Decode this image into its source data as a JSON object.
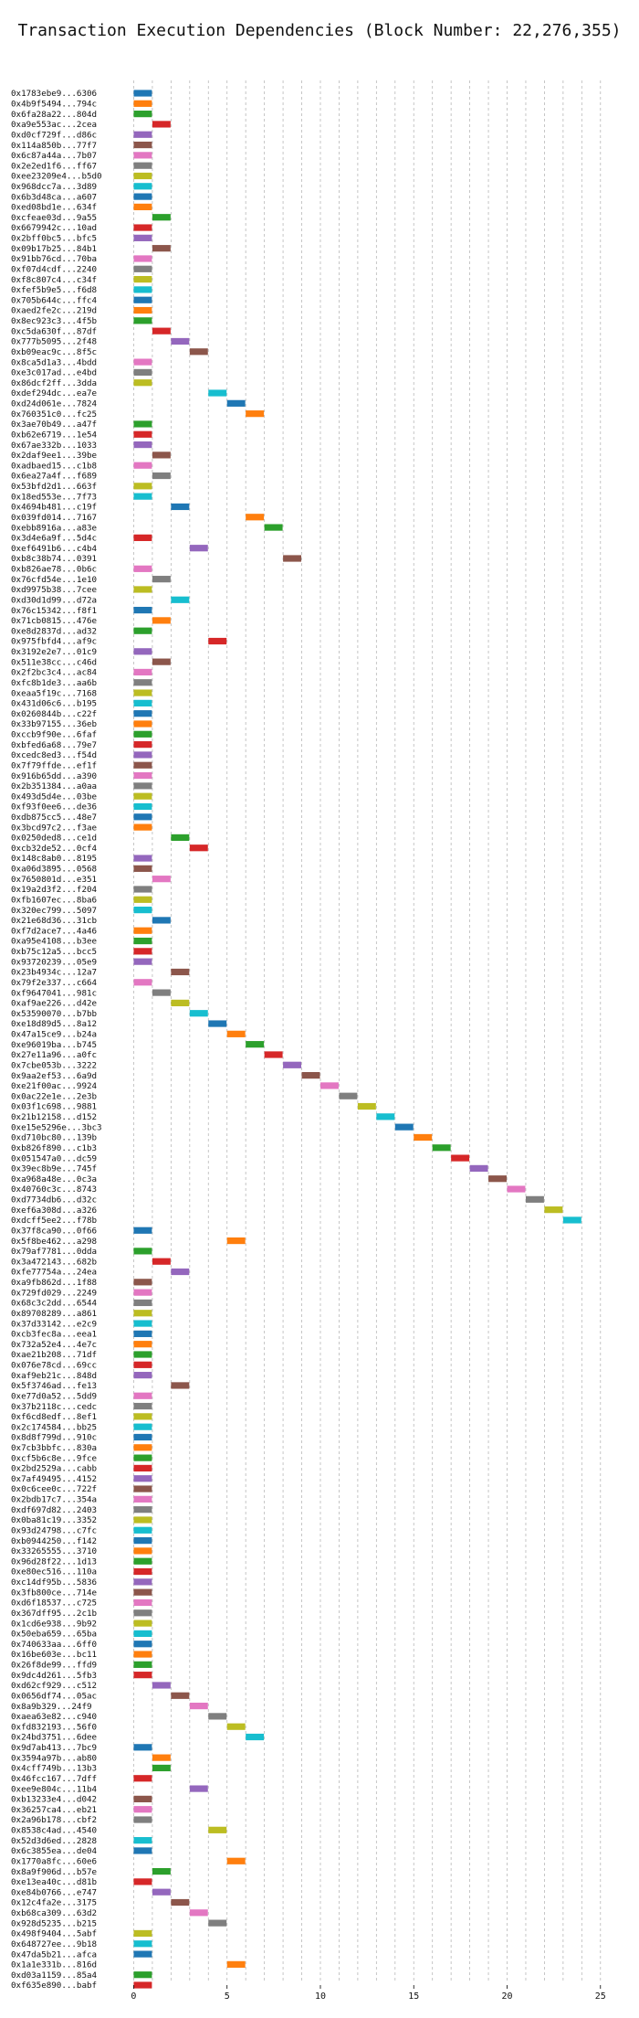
{
  "chart_data": {
    "type": "bar",
    "title": "Transaction Execution Dependencies (Block Number: 22,276,355)",
    "xlabel": "",
    "ylabel": "",
    "xlim": [
      -1,
      25.5
    ],
    "xticks": [
      0,
      5,
      10,
      15,
      20,
      25
    ],
    "grid": true,
    "palette": [
      "#1f77b4",
      "#ff7f0e",
      "#2ca02c",
      "#d62728",
      "#9467bd",
      "#8c564b",
      "#e377c2",
      "#7f7f7f",
      "#bcbd22",
      "#17becf"
    ],
    "transactions": [
      {
        "label": "0x1783ebe9...6306",
        "start": 0
      },
      {
        "label": "0x4b9f5494...794c",
        "start": 0
      },
      {
        "label": "0x6fa28a22...804d",
        "start": 0
      },
      {
        "label": "0xa9e553ac...2cea",
        "start": 1
      },
      {
        "label": "0xd0cf729f...d86c",
        "start": 0
      },
      {
        "label": "0x114a850b...77f7",
        "start": 0
      },
      {
        "label": "0x6c87a44a...7b07",
        "start": 0
      },
      {
        "label": "0x2e2ed1f6...ff67",
        "start": 0
      },
      {
        "label": "0xee23209e4...b5d0",
        "start": 0
      },
      {
        "label": "0x968dcc7a...3d89",
        "start": 0
      },
      {
        "label": "0x6b3d48ca...a607",
        "start": 0
      },
      {
        "label": "0xed08bd1e...634f",
        "start": 0
      },
      {
        "label": "0xcfeae03d...9a55",
        "start": 1
      },
      {
        "label": "0x6679942c...10ad",
        "start": 0
      },
      {
        "label": "0x2bff0bc5...bfc5",
        "start": 0
      },
      {
        "label": "0x09b17b25...84b1",
        "start": 1
      },
      {
        "label": "0x91bb76cd...70ba",
        "start": 0
      },
      {
        "label": "0xf07d4cdf...2240",
        "start": 0
      },
      {
        "label": "0xf8c807c4...c34f",
        "start": 0
      },
      {
        "label": "0xfef5b9e5...f6d8",
        "start": 0
      },
      {
        "label": "0x705b644c...ffc4",
        "start": 0
      },
      {
        "label": "0xaed2fe2c...219d",
        "start": 0
      },
      {
        "label": "0x8ec923c3...4f5b",
        "start": 0
      },
      {
        "label": "0xc5da630f...87df",
        "start": 1
      },
      {
        "label": "0x777b5095...2f48",
        "start": 2
      },
      {
        "label": "0xb09eac9c...8f5c",
        "start": 3
      },
      {
        "label": "0x8ca5d1a3...4bdd",
        "start": 0
      },
      {
        "label": "0xe3c017ad...e4bd",
        "start": 0
      },
      {
        "label": "0x86dcf2ff...3dda",
        "start": 0
      },
      {
        "label": "0xdef294dc...ea7e",
        "start": 4
      },
      {
        "label": "0xd24d061e...7824",
        "start": 5
      },
      {
        "label": "0x760351c0...fc25",
        "start": 6
      },
      {
        "label": "0x3ae70b49...a47f",
        "start": 0
      },
      {
        "label": "0xb62e6719...1e54",
        "start": 0
      },
      {
        "label": "0x67ae332b...1033",
        "start": 0
      },
      {
        "label": "0x2daf9ee1...39be",
        "start": 1
      },
      {
        "label": "0xadbaed15...c1b8",
        "start": 0
      },
      {
        "label": "0x6ea27a4f...f689",
        "start": 1
      },
      {
        "label": "0x53bfd2d1...663f",
        "start": 0
      },
      {
        "label": "0x18ed553e...7f73",
        "start": 0
      },
      {
        "label": "0x4694b481...c19f",
        "start": 2
      },
      {
        "label": "0x039fd014...7167",
        "start": 6
      },
      {
        "label": "0xebb8916a...a83e",
        "start": 7
      },
      {
        "label": "0x3d4e6a9f...5d4c",
        "start": 0
      },
      {
        "label": "0xef6491b6...c4b4",
        "start": 3
      },
      {
        "label": "0xb8c38b74...0391",
        "start": 8
      },
      {
        "label": "0xb826ae78...0b6c",
        "start": 0
      },
      {
        "label": "0x76cfd54e...1e10",
        "start": 1
      },
      {
        "label": "0xd9975b38...7cee",
        "start": 0
      },
      {
        "label": "0xd30d1d99...d72a",
        "start": 2
      },
      {
        "label": "0x76c15342...f8f1",
        "start": 0
      },
      {
        "label": "0x71cb0815...476e",
        "start": 1
      },
      {
        "label": "0xe8d2837d...ad32",
        "start": 0
      },
      {
        "label": "0x975fbfd4...af9c",
        "start": 4
      },
      {
        "label": "0x3192e2e7...01c9",
        "start": 0
      },
      {
        "label": "0x511e38cc...c46d",
        "start": 1
      },
      {
        "label": "0x2f2bc3c4...ac84",
        "start": 0
      },
      {
        "label": "0xfc8b1de3...aa6b",
        "start": 0
      },
      {
        "label": "0xeaa5f19c...7168",
        "start": 0
      },
      {
        "label": "0x431d06c6...b195",
        "start": 0
      },
      {
        "label": "0x0260844b...c22f",
        "start": 0
      },
      {
        "label": "0x33b97155...36eb",
        "start": 0
      },
      {
        "label": "0xccb9f90e...6faf",
        "start": 0
      },
      {
        "label": "0xbfed6a68...79e7",
        "start": 0
      },
      {
        "label": "0xcedc8ed3...f54d",
        "start": 0
      },
      {
        "label": "0x7f79ffde...ef1f",
        "start": 0
      },
      {
        "label": "0x916b65dd...a390",
        "start": 0
      },
      {
        "label": "0x2b351384...a0aa",
        "start": 0
      },
      {
        "label": "0x493d5d4e...03be",
        "start": 0
      },
      {
        "label": "0xf93f0ee6...de36",
        "start": 0
      },
      {
        "label": "0xdb875cc5...48e7",
        "start": 0
      },
      {
        "label": "0x3bcd97c2...f3ae",
        "start": 0
      },
      {
        "label": "0x0250ded8...ce1d",
        "start": 2
      },
      {
        "label": "0xcb32de52...0cf4",
        "start": 3
      },
      {
        "label": "0x148c8ab0...8195",
        "start": 0
      },
      {
        "label": "0xa06d3895...0568",
        "start": 0
      },
      {
        "label": "0x7650801d...e351",
        "start": 1
      },
      {
        "label": "0x19a2d3f2...f204",
        "start": 0
      },
      {
        "label": "0xfb1607ec...8ba6",
        "start": 0
      },
      {
        "label": "0x320ec799...5097",
        "start": 0
      },
      {
        "label": "0x21e68d36...31cb",
        "start": 1
      },
      {
        "label": "0xf7d2ace7...4a46",
        "start": 0
      },
      {
        "label": "0xa95e4108...b3ee",
        "start": 0
      },
      {
        "label": "0xb75c12a5...bcc5",
        "start": 0
      },
      {
        "label": "0x93720239...05e9",
        "start": 0
      },
      {
        "label": "0x23b4934c...12a7",
        "start": 2
      },
      {
        "label": "0x79f2e337...c664",
        "start": 0
      },
      {
        "label": "0xf9647041...981c",
        "start": 1
      },
      {
        "label": "0xaf9ae226...d42e",
        "start": 2
      },
      {
        "label": "0x53590070...b7bb",
        "start": 3
      },
      {
        "label": "0xe18d89d5...8a12",
        "start": 4
      },
      {
        "label": "0x47a15ce9...b24a",
        "start": 5
      },
      {
        "label": "0xe96019ba...b745",
        "start": 6
      },
      {
        "label": "0x27e11a96...a0fc",
        "start": 7
      },
      {
        "label": "0x7cbe053b...3222",
        "start": 8
      },
      {
        "label": "0x9aa2ef53...6a9d",
        "start": 9
      },
      {
        "label": "0xe21f00ac...9924",
        "start": 10
      },
      {
        "label": "0x0ac22e1e...2e3b",
        "start": 11
      },
      {
        "label": "0x03f1c698...9881",
        "start": 12
      },
      {
        "label": "0x21b12158...d152",
        "start": 13
      },
      {
        "label": "0xe15e5296e...3bc3",
        "start": 14
      },
      {
        "label": "0xd710bc80...139b",
        "start": 15
      },
      {
        "label": "0xb826f890...c1b3",
        "start": 16
      },
      {
        "label": "0x051547a0...dc59",
        "start": 17
      },
      {
        "label": "0x39ec8b9e...745f",
        "start": 18
      },
      {
        "label": "0xa968a48e...0c3a",
        "start": 19
      },
      {
        "label": "0x40760c3c...8743",
        "start": 20
      },
      {
        "label": "0xd7734db6...d32c",
        "start": 21
      },
      {
        "label": "0xef6a308d...a326",
        "start": 22
      },
      {
        "label": "0xdcff5ee2...f78b",
        "start": 23
      },
      {
        "label": "0x37f8ca90...0f66",
        "start": 0
      },
      {
        "label": "0x5f8be462...a298",
        "start": 5
      },
      {
        "label": "0x79af7781...0dda",
        "start": 0
      },
      {
        "label": "0x3a472143...682b",
        "start": 1
      },
      {
        "label": "0xfe77754a...24ea",
        "start": 2
      },
      {
        "label": "0xa9fb862d...1f88",
        "start": 0
      },
      {
        "label": "0x729fd029...2249",
        "start": 0
      },
      {
        "label": "0x68c3c2dd...6544",
        "start": 0
      },
      {
        "label": "0x89708289...a861",
        "start": 0
      },
      {
        "label": "0x37d33142...e2c9",
        "start": 0
      },
      {
        "label": "0xcb3fec8a...eea1",
        "start": 0
      },
      {
        "label": "0x732a52e4...4e7c",
        "start": 0
      },
      {
        "label": "0xae21b208...71df",
        "start": 0
      },
      {
        "label": "0x076e78cd...69cc",
        "start": 0
      },
      {
        "label": "0xaf9eb21c...848d",
        "start": 0
      },
      {
        "label": "0x5f3746ad...fe13",
        "start": 2
      },
      {
        "label": "0xe77d0a52...5dd9",
        "start": 0
      },
      {
        "label": "0x37b2118c...cedc",
        "start": 0
      },
      {
        "label": "0xf6cd8edf...8ef1",
        "start": 0
      },
      {
        "label": "0x2c174584...bb25",
        "start": 0
      },
      {
        "label": "0x8d8f799d...910c",
        "start": 0
      },
      {
        "label": "0x7cb3bbfc...830a",
        "start": 0
      },
      {
        "label": "0xcf5b6c8e...9fce",
        "start": 0
      },
      {
        "label": "0x2bd2529a...cabb",
        "start": 0
      },
      {
        "label": "0x7af49495...4152",
        "start": 0
      },
      {
        "label": "0x0c6cee0c...722f",
        "start": 0
      },
      {
        "label": "0x2bdb17c7...354a",
        "start": 0
      },
      {
        "label": "0xdf697d82...2403",
        "start": 0
      },
      {
        "label": "0x0ba81c19...3352",
        "start": 0
      },
      {
        "label": "0x93d24798...c7fc",
        "start": 0
      },
      {
        "label": "0xb0944250...f142",
        "start": 0
      },
      {
        "label": "0x33265555...3710",
        "start": 0
      },
      {
        "label": "0x96d28f22...1d13",
        "start": 0
      },
      {
        "label": "0xe80ec516...110a",
        "start": 0
      },
      {
        "label": "0xc14df95b...5836",
        "start": 0
      },
      {
        "label": "0x3fb800ce...714e",
        "start": 0
      },
      {
        "label": "0xd6f18537...c725",
        "start": 0
      },
      {
        "label": "0x367dff95...2c1b",
        "start": 0
      },
      {
        "label": "0x1cd6e938...9b92",
        "start": 0
      },
      {
        "label": "0x50eba659...65ba",
        "start": 0
      },
      {
        "label": "0x740633aa...6ff0",
        "start": 0
      },
      {
        "label": "0x16be603e...bc11",
        "start": 0
      },
      {
        "label": "0x26f8de99...ffd9",
        "start": 0
      },
      {
        "label": "0x9dc4d261...5fb3",
        "start": 0
      },
      {
        "label": "0xd62cf929...c512",
        "start": 1
      },
      {
        "label": "0x0656df74...05ac",
        "start": 2
      },
      {
        "label": "0x8a9b329...24f9",
        "start": 3
      },
      {
        "label": "0xaea63e82...c940",
        "start": 4
      },
      {
        "label": "0xfd832193...56f0",
        "start": 5
      },
      {
        "label": "0x24bd3751...6dee",
        "start": 6
      },
      {
        "label": "0x9d7ab413...7bc9",
        "start": 0
      },
      {
        "label": "0x3594a97b...ab80",
        "start": 1
      },
      {
        "label": "0x4cff749b...13b3",
        "start": 1
      },
      {
        "label": "0x46fcc167...7dff",
        "start": 0
      },
      {
        "label": "0xee9e804c...11b4",
        "start": 3
      },
      {
        "label": "0xb13233e4...d042",
        "start": 0
      },
      {
        "label": "0x36257ca4...eb21",
        "start": 0
      },
      {
        "label": "0x2a96b178...cbf2",
        "start": 0
      },
      {
        "label": "0x8538c4ad...4540",
        "start": 4
      },
      {
        "label": "0x52d3d6ed...2828",
        "start": 0
      },
      {
        "label": "0x6c3855ea...de04",
        "start": 0
      },
      {
        "label": "0x1770a8fc...60e6",
        "start": 5
      },
      {
        "label": "0x8a9f906d...b57e",
        "start": 1
      },
      {
        "label": "0xe13ea40c...d81b",
        "start": 0
      },
      {
        "label": "0xe84b0766...e747",
        "start": 1
      },
      {
        "label": "0x12c4fa2e...3175",
        "start": 2
      },
      {
        "label": "0xb68ca309...63d2",
        "start": 3
      },
      {
        "label": "0x928d5235...b215",
        "start": 4
      },
      {
        "label": "0x498f9404...5abf",
        "start": 0
      },
      {
        "label": "0x648727ee...9b18",
        "start": 0
      },
      {
        "label": "0x47da5b21...afca",
        "start": 0
      },
      {
        "label": "0x1a1e331b...816d",
        "start": 5
      },
      {
        "label": "0xd03a1159...85a4",
        "start": 0
      },
      {
        "label": "0xf635e890...babf",
        "start": 0
      }
    ]
  }
}
